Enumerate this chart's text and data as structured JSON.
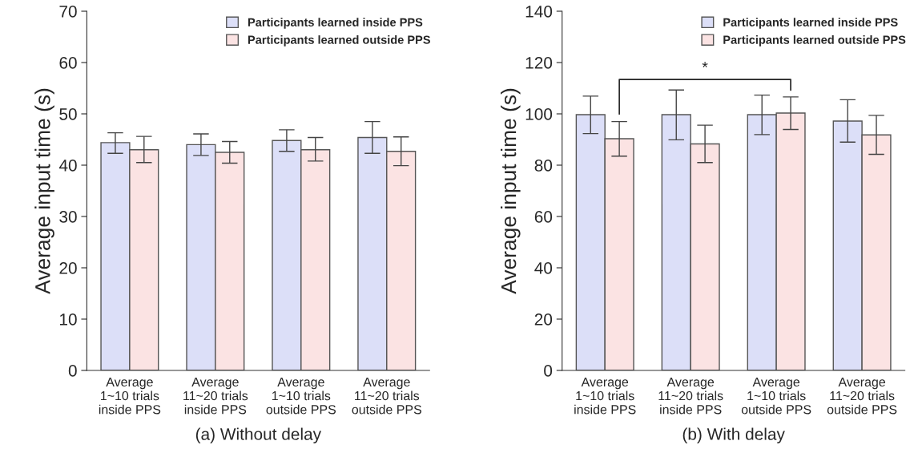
{
  "chart_data": [
    {
      "type": "bar",
      "xlabel": "(a) Without delay",
      "ylabel": "Average input time (s)",
      "categories": [
        "Average\n1~10 trials\ninside PPS",
        "Average\n11~20 trials\ninside PPS",
        "Average\n1~10 trials\noutside PPS",
        "Average\n11~20 trials\noutside PPS"
      ],
      "series": [
        {
          "name": "Participants learned inside PPS",
          "color": "#dcdff8",
          "values": [
            44.4,
            44.0,
            44.8,
            45.4
          ],
          "errors": [
            [
              42.3,
              46.3
            ],
            [
              41.9,
              46.1
            ],
            [
              42.7,
              46.9
            ],
            [
              42.3,
              48.5
            ]
          ]
        },
        {
          "name": "Participants learned outside PPS",
          "color": "#fbe3e3",
          "values": [
            43.0,
            42.5,
            43.0,
            42.7
          ],
          "errors": [
            [
              40.5,
              45.6
            ],
            [
              40.4,
              44.6
            ],
            [
              40.8,
              45.4
            ],
            [
              39.9,
              45.5
            ]
          ]
        }
      ],
      "ylim": [
        0,
        70
      ],
      "yticks": [
        0,
        10,
        20,
        30,
        40,
        50,
        60,
        70
      ],
      "legend": "top right",
      "grid": false
    },
    {
      "type": "bar",
      "xlabel": "(b) With delay",
      "ylabel": "Average input time (s)",
      "categories": [
        "Average\n1~10 trials\ninside PPS",
        "Average\n11~20 trials\ninside PPS",
        "Average\n1~10 trials\noutside PPS",
        "Average\n11~20 trials\noutside PPS"
      ],
      "series": [
        {
          "name": "Participants learned inside PPS",
          "color": "#dcdff8",
          "values": [
            99.7,
            99.7,
            99.7,
            97.2
          ],
          "errors": [
            [
              92.3,
              106.9
            ],
            [
              89.9,
              109.3
            ],
            [
              91.9,
              107.3
            ],
            [
              89.0,
              105.5
            ]
          ]
        },
        {
          "name": "Participants learned outside PPS",
          "color": "#fbe3e3",
          "values": [
            90.3,
            88.3,
            100.3,
            91.8
          ],
          "errors": [
            [
              83.5,
              97.0
            ],
            [
              81.0,
              95.6
            ],
            [
              93.9,
              106.6
            ],
            [
              84.2,
              99.4
            ]
          ]
        }
      ],
      "ylim": [
        0,
        140
      ],
      "yticks": [
        0,
        20,
        40,
        60,
        80,
        100,
        120,
        140
      ],
      "legend": "top right",
      "grid": false,
      "annotations": [
        "*"
      ]
    }
  ]
}
